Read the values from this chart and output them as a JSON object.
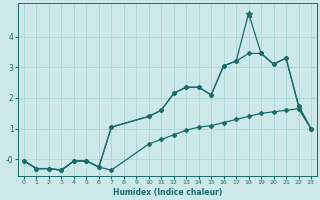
{
  "xlabel": "Humidex (Indice chaleur)",
  "bg_color": "#cce8e8",
  "grid_color": "#aad4d4",
  "line_color": "#1a6b6b",
  "x_ticks": [
    0,
    1,
    2,
    3,
    4,
    5,
    6,
    7,
    8,
    9,
    10,
    11,
    12,
    13,
    14,
    15,
    16,
    17,
    18,
    19,
    20,
    21,
    22,
    23
  ],
  "y_ticks": [
    0,
    1,
    2,
    3,
    4
  ],
  "y_tick_labels": [
    "-0",
    "1",
    "2",
    "3",
    "4"
  ],
  "ylim": [
    -0.55,
    5.1
  ],
  "xlim": [
    -0.5,
    23.5
  ],
  "series1_x": [
    0,
    1,
    2,
    3,
    4,
    5,
    6,
    7,
    10,
    11,
    12,
    13,
    14,
    15,
    16,
    17,
    18,
    19,
    20,
    21,
    22,
    23
  ],
  "series1_y": [
    -0.05,
    -0.3,
    -0.3,
    -0.35,
    -0.05,
    -0.05,
    -0.25,
    -0.35,
    0.5,
    0.65,
    0.8,
    0.95,
    1.05,
    1.1,
    1.2,
    1.3,
    1.4,
    1.5,
    1.55,
    1.6,
    1.65,
    1.0
  ],
  "series2_x": [
    0,
    1,
    2,
    3,
    4,
    5,
    6,
    7,
    10,
    11,
    12,
    13,
    14,
    15,
    16,
    17,
    18,
    19,
    20,
    21,
    22,
    23
  ],
  "series2_y": [
    -0.05,
    -0.3,
    -0.3,
    -0.35,
    -0.05,
    -0.05,
    -0.25,
    1.05,
    1.4,
    1.6,
    2.15,
    2.35,
    2.35,
    2.1,
    3.05,
    3.2,
    3.45,
    3.45,
    3.1,
    3.3,
    1.75,
    1.0
  ],
  "series3_x": [
    0,
    1,
    2,
    3,
    4,
    5,
    6,
    7,
    10,
    11,
    12,
    13,
    14,
    15,
    16,
    17,
    18,
    19,
    20,
    21,
    22,
    23
  ],
  "series3_y": [
    -0.05,
    -0.3,
    -0.3,
    -0.35,
    -0.05,
    -0.05,
    -0.25,
    1.05,
    1.4,
    1.6,
    2.15,
    2.35,
    2.35,
    2.1,
    3.05,
    3.2,
    4.75,
    3.45,
    3.1,
    3.3,
    1.75,
    1.0
  ],
  "lw": 0.9,
  "marker_size_d": 2.0,
  "marker_size_star": 4.5
}
